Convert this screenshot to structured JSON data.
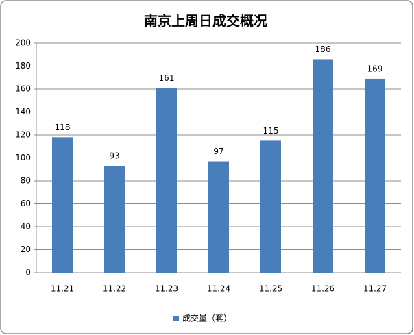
{
  "chart_data": {
    "type": "bar",
    "title": "南京上周日成交概况",
    "categories": [
      "11.21",
      "11.22",
      "11.23",
      "11.24",
      "11.25",
      "11.26",
      "11.27"
    ],
    "series": [
      {
        "name": "成交量（套）",
        "color": "#4a7ebb",
        "values": [
          118,
          93,
          161,
          97,
          115,
          186,
          169
        ]
      }
    ],
    "ylim": [
      0,
      200
    ],
    "yticks": [
      0,
      20,
      40,
      60,
      80,
      100,
      120,
      140,
      160,
      180,
      200
    ],
    "grid": true,
    "legend": "bottom"
  }
}
